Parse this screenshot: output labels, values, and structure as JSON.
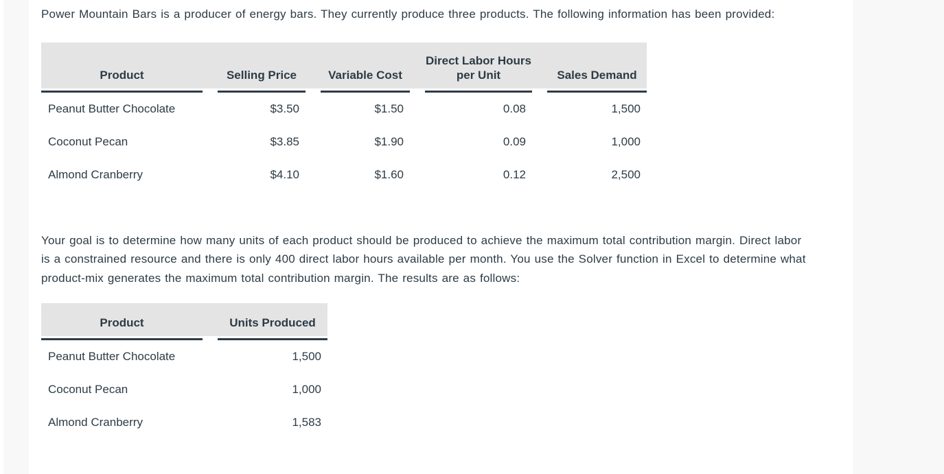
{
  "theme": {
    "text_color": "#2d3b45",
    "content_background": "#ffffff",
    "gutter_background": "#f8f8f8",
    "table_header_background": "#e4e4e4",
    "table_underline_color": "#2d3b45"
  },
  "intro_paragraph": "Power Mountain Bars is a producer of energy bars. They currently produce three products. The following information has been provided:",
  "products_table": {
    "columns": [
      "Product",
      "Selling Price",
      "Variable Cost",
      "Direct Labor Hours per Unit",
      "Sales Demand"
    ],
    "rows": [
      [
        "Peanut Butter Chocolate",
        "$3.50",
        "$1.50",
        "0.08",
        "1,500"
      ],
      [
        "Coconut Pecan",
        "$3.85",
        "$1.90",
        "0.09",
        "1,000"
      ],
      [
        "Almond Cranberry",
        "$4.10",
        "$1.60",
        "0.12",
        "2,500"
      ]
    ]
  },
  "goal_paragraph": "Your goal is to determine how many units of each product should be produced to achieve the maximum total contribution margin. Direct labor is a constrained resource and there is only 400 direct labor hours available per month. You use the Solver function in Excel to determine what product-mix generates the maximum total contribution margin. The results are as follows:",
  "results_table": {
    "columns": [
      "Product",
      "Units Produced"
    ],
    "rows": [
      [
        "Peanut Butter Chocolate",
        "1,500"
      ],
      [
        "Coconut Pecan",
        "1,000"
      ],
      [
        "Almond Cranberry",
        "1,583"
      ]
    ]
  }
}
